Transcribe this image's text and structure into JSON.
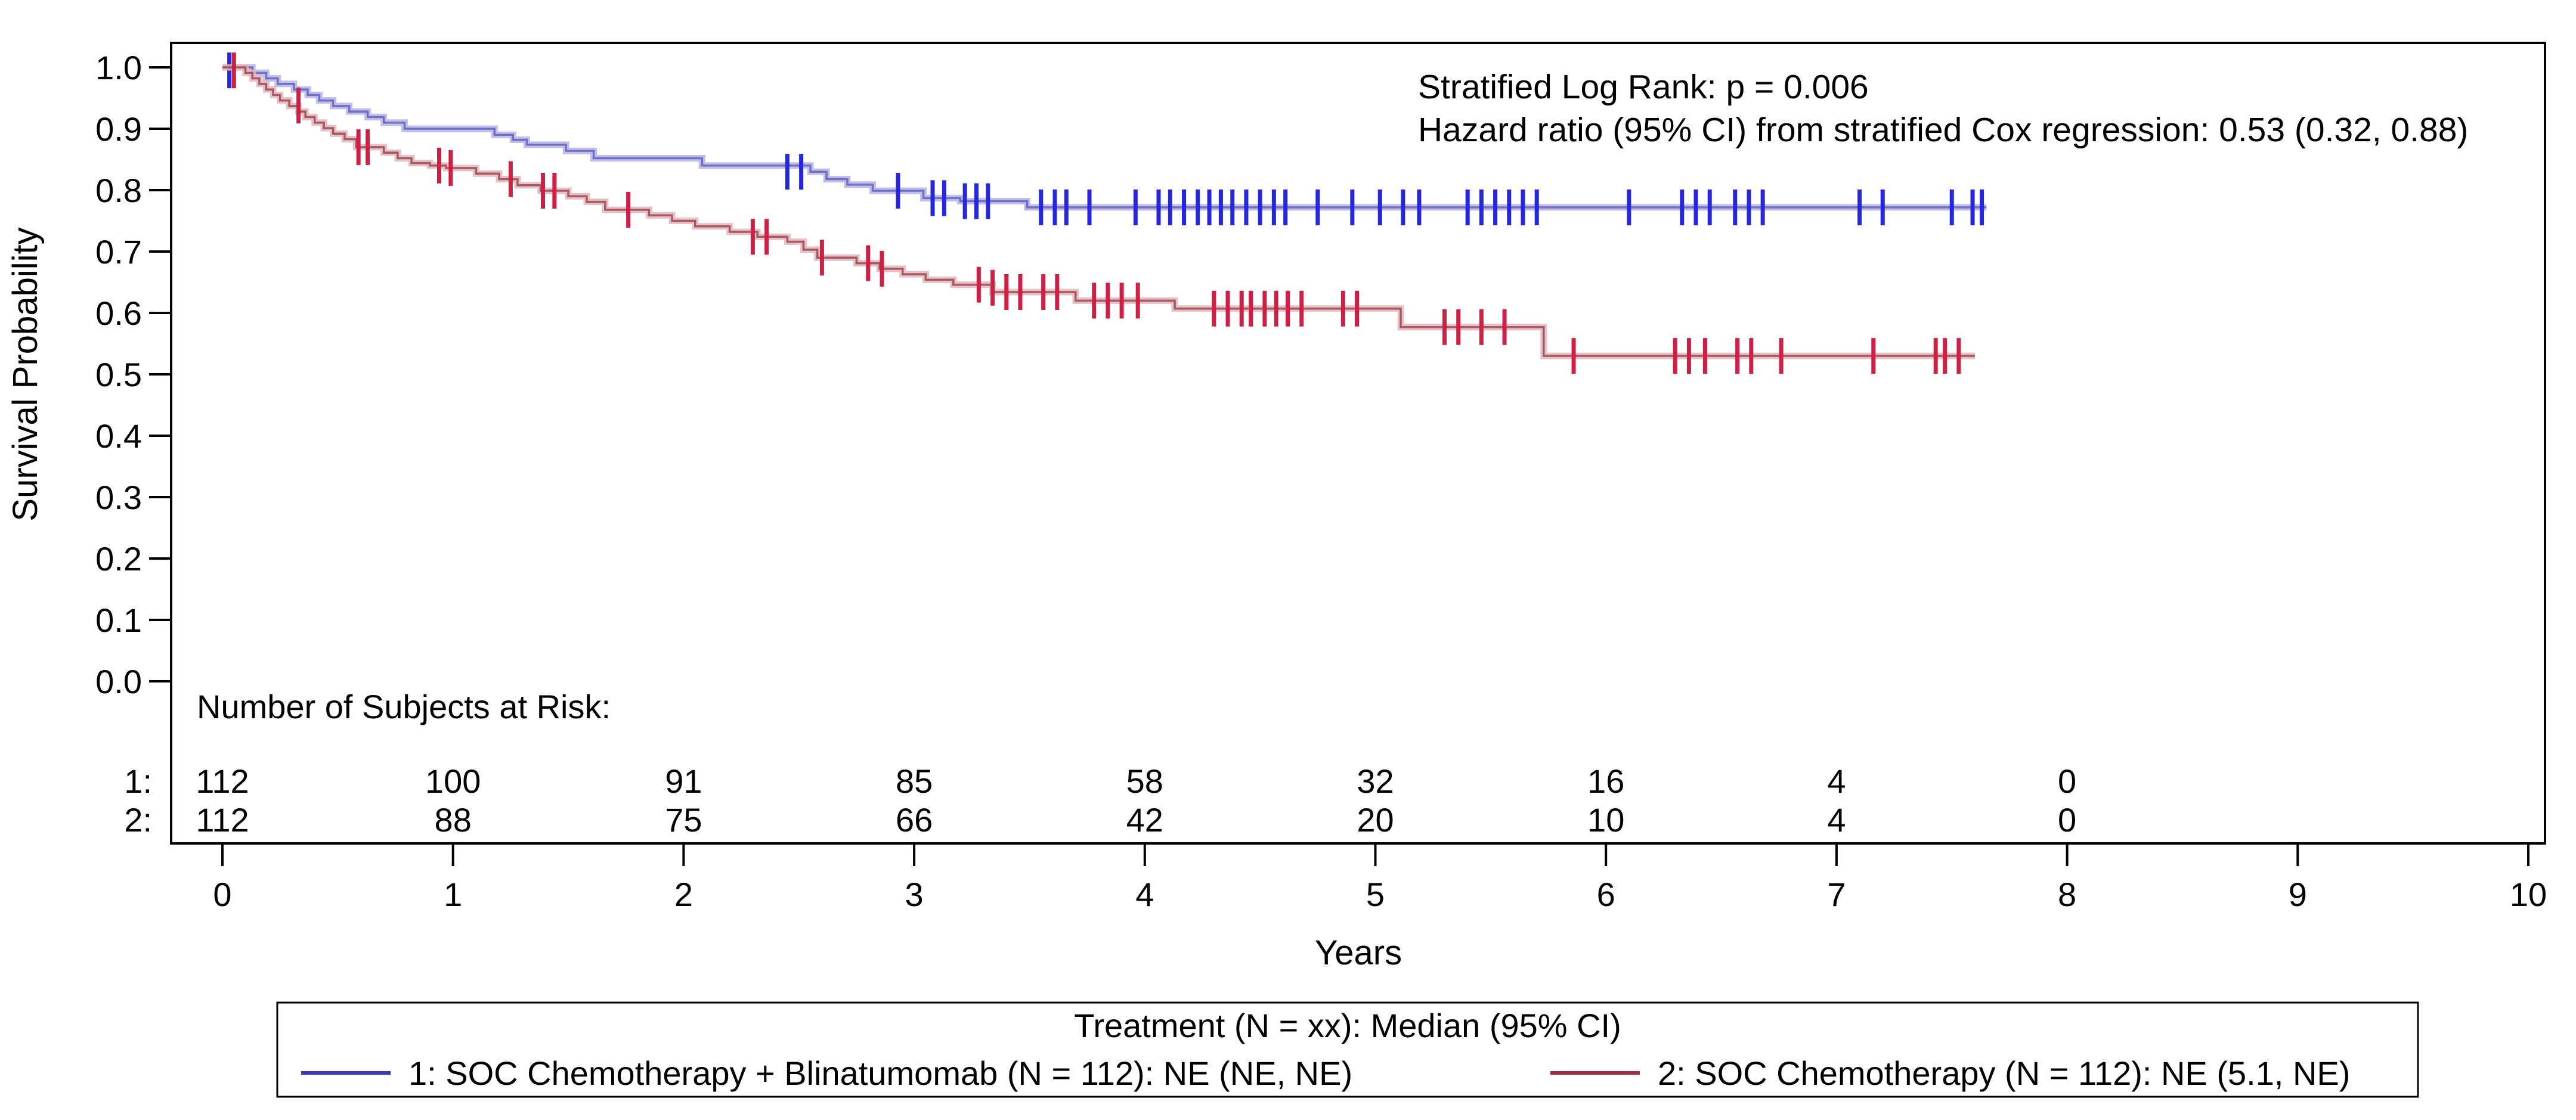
{
  "annotations": {
    "line1": "Stratified Log Rank: p = 0.006",
    "line2": "Hazard ratio (95% CI) from stratified Cox regression: 0.53 (0.32, 0.88)"
  },
  "risk_table": {
    "header": "Number of Subjects at Risk:",
    "rows": [
      {
        "label": "1:",
        "color": "#2a2acc",
        "values": [
          112,
          100,
          91,
          85,
          58,
          32,
          16,
          4,
          0
        ]
      },
      {
        "label": "2:",
        "color": "#c81f3a",
        "values": [
          112,
          88,
          75,
          66,
          42,
          20,
          10,
          4,
          0
        ]
      }
    ],
    "years": [
      0,
      1,
      2,
      3,
      4,
      5,
      6,
      7,
      8
    ]
  },
  "legend": {
    "title": "Treatment (N = xx): Median (95% CI)",
    "entries": [
      {
        "label": "1: SOC Chemotherapy + Blinatumomab (N = 112): NE (NE, NE)",
        "color": "#3a3ab8"
      },
      {
        "label": "2: SOC Chemotherapy (N = 112): NE (5.1, NE)",
        "color": "#9c3040"
      }
    ]
  },
  "chart_data": {
    "type": "line",
    "subtype": "kaplan-meier-step",
    "xlabel": "Years",
    "ylabel": "Survival Probability",
    "xlim": [
      0,
      10
    ],
    "ylim": [
      0.0,
      1.0
    ],
    "xticks": [
      0,
      1,
      2,
      3,
      4,
      5,
      6,
      7,
      8,
      9,
      10
    ],
    "yticks": [
      1.0,
      0.9,
      0.8,
      0.7,
      0.6,
      0.5,
      0.4,
      0.3,
      0.2,
      0.1,
      0.0
    ],
    "grid": false,
    "legend_position": "bottom",
    "stats": {
      "stratified_log_rank_p": "0.006",
      "hazard_ratio": "0.53",
      "hazard_ratio_ci": "(0.32, 0.88)"
    },
    "series": [
      {
        "name": "1: SOC Chemotherapy + Blinatumomab (N = 112): NE (NE, NE)",
        "row_label": "1:",
        "halo_color": "#b4b4e6",
        "core_color": "#6f6fc5",
        "censor_color": "#2626dd",
        "risk_color": "#2a2acc",
        "end_year": 7.65,
        "steps": [
          [
            0.0,
            1.0
          ],
          [
            0.13,
            0.991
          ],
          [
            0.19,
            0.982
          ],
          [
            0.24,
            0.973
          ],
          [
            0.31,
            0.964
          ],
          [
            0.37,
            0.955
          ],
          [
            0.42,
            0.946
          ],
          [
            0.48,
            0.937
          ],
          [
            0.55,
            0.928
          ],
          [
            0.63,
            0.919
          ],
          [
            0.7,
            0.91
          ],
          [
            0.79,
            0.9
          ],
          [
            1.18,
            0.89
          ],
          [
            1.26,
            0.882
          ],
          [
            1.32,
            0.874
          ],
          [
            1.49,
            0.864
          ],
          [
            1.61,
            0.852
          ],
          [
            2.08,
            0.84
          ],
          [
            2.55,
            0.83
          ],
          [
            2.62,
            0.818
          ],
          [
            2.71,
            0.809
          ],
          [
            2.82,
            0.799
          ],
          [
            3.04,
            0.787
          ],
          [
            3.2,
            0.782
          ],
          [
            3.49,
            0.772
          ]
        ],
        "censors": [
          [
            0.03,
            0.995
          ],
          [
            2.45,
            0.83
          ],
          [
            2.51,
            0.83
          ],
          [
            2.93,
            0.799
          ],
          [
            3.08,
            0.787
          ],
          [
            3.13,
            0.787
          ],
          [
            3.22,
            0.782
          ],
          [
            3.27,
            0.782
          ],
          [
            3.32,
            0.782
          ],
          [
            3.55,
            0.772
          ],
          [
            3.61,
            0.772
          ],
          [
            3.66,
            0.772
          ],
          [
            3.76,
            0.772
          ],
          [
            3.96,
            0.772
          ],
          [
            4.06,
            0.772
          ],
          [
            4.11,
            0.772
          ],
          [
            4.17,
            0.772
          ],
          [
            4.23,
            0.772
          ],
          [
            4.28,
            0.772
          ],
          [
            4.33,
            0.772
          ],
          [
            4.38,
            0.772
          ],
          [
            4.44,
            0.772
          ],
          [
            4.5,
            0.772
          ],
          [
            4.56,
            0.772
          ],
          [
            4.61,
            0.772
          ],
          [
            4.75,
            0.772
          ],
          [
            4.9,
            0.772
          ],
          [
            5.02,
            0.772
          ],
          [
            5.12,
            0.772
          ],
          [
            5.19,
            0.772
          ],
          [
            5.4,
            0.772
          ],
          [
            5.46,
            0.772
          ],
          [
            5.52,
            0.772
          ],
          [
            5.58,
            0.772
          ],
          [
            5.64,
            0.772
          ],
          [
            5.7,
            0.772
          ],
          [
            6.1,
            0.772
          ],
          [
            6.33,
            0.772
          ],
          [
            6.39,
            0.772
          ],
          [
            6.45,
            0.772
          ],
          [
            6.56,
            0.772
          ],
          [
            6.62,
            0.772
          ],
          [
            6.68,
            0.772
          ],
          [
            7.1,
            0.772
          ],
          [
            7.2,
            0.772
          ],
          [
            7.5,
            0.772
          ],
          [
            7.59,
            0.772
          ],
          [
            7.63,
            0.772
          ]
        ]
      },
      {
        "name": "2: SOC Chemotherapy (N = 112): NE (5.1, NE)",
        "row_label": "2:",
        "halo_color": "#e2b6bb",
        "core_color": "#a85862",
        "censor_color": "#cf1f45",
        "risk_color": "#c81f3a",
        "end_year": 7.6,
        "steps": [
          [
            0.0,
            1.0
          ],
          [
            0.1,
            0.991
          ],
          [
            0.13,
            0.982
          ],
          [
            0.16,
            0.973
          ],
          [
            0.19,
            0.964
          ],
          [
            0.22,
            0.955
          ],
          [
            0.25,
            0.946
          ],
          [
            0.29,
            0.937
          ],
          [
            0.33,
            0.928
          ],
          [
            0.36,
            0.919
          ],
          [
            0.4,
            0.91
          ],
          [
            0.44,
            0.901
          ],
          [
            0.48,
            0.892
          ],
          [
            0.53,
            0.883
          ],
          [
            0.58,
            0.87
          ],
          [
            0.7,
            0.861
          ],
          [
            0.76,
            0.852
          ],
          [
            0.82,
            0.844
          ],
          [
            0.9,
            0.84
          ],
          [
            0.97,
            0.836
          ],
          [
            1.1,
            0.827
          ],
          [
            1.2,
            0.818
          ],
          [
            1.28,
            0.808
          ],
          [
            1.38,
            0.799
          ],
          [
            1.5,
            0.79
          ],
          [
            1.58,
            0.781
          ],
          [
            1.66,
            0.768
          ],
          [
            1.85,
            0.759
          ],
          [
            1.95,
            0.75
          ],
          [
            2.05,
            0.741
          ],
          [
            2.2,
            0.732
          ],
          [
            2.32,
            0.724
          ],
          [
            2.45,
            0.716
          ],
          [
            2.52,
            0.703
          ],
          [
            2.58,
            0.69
          ],
          [
            2.75,
            0.681
          ],
          [
            2.85,
            0.672
          ],
          [
            2.95,
            0.663
          ],
          [
            3.05,
            0.654
          ],
          [
            3.17,
            0.646
          ],
          [
            3.34,
            0.634
          ],
          [
            3.7,
            0.62
          ],
          [
            4.13,
            0.607
          ],
          [
            5.11,
            0.577
          ],
          [
            5.73,
            0.53
          ]
        ],
        "censors": [
          [
            0.05,
            0.995
          ],
          [
            0.33,
            0.938
          ],
          [
            0.59,
            0.87
          ],
          [
            0.63,
            0.87
          ],
          [
            0.94,
            0.84
          ],
          [
            0.99,
            0.836
          ],
          [
            1.25,
            0.818
          ],
          [
            1.39,
            0.799
          ],
          [
            1.44,
            0.799
          ],
          [
            1.76,
            0.768
          ],
          [
            2.3,
            0.724
          ],
          [
            2.36,
            0.724
          ],
          [
            2.6,
            0.69
          ],
          [
            2.8,
            0.681
          ],
          [
            2.86,
            0.672
          ],
          [
            3.28,
            0.646
          ],
          [
            3.34,
            0.641
          ],
          [
            3.4,
            0.634
          ],
          [
            3.46,
            0.634
          ],
          [
            3.56,
            0.634
          ],
          [
            3.62,
            0.634
          ],
          [
            3.78,
            0.62
          ],
          [
            3.84,
            0.62
          ],
          [
            3.9,
            0.62
          ],
          [
            3.97,
            0.62
          ],
          [
            4.3,
            0.607
          ],
          [
            4.36,
            0.607
          ],
          [
            4.42,
            0.607
          ],
          [
            4.46,
            0.607
          ],
          [
            4.52,
            0.607
          ],
          [
            4.57,
            0.607
          ],
          [
            4.62,
            0.607
          ],
          [
            4.68,
            0.607
          ],
          [
            4.86,
            0.607
          ],
          [
            4.92,
            0.607
          ],
          [
            5.3,
            0.577
          ],
          [
            5.36,
            0.577
          ],
          [
            5.46,
            0.577
          ],
          [
            5.56,
            0.577
          ],
          [
            5.86,
            0.53
          ],
          [
            6.3,
            0.53
          ],
          [
            6.36,
            0.53
          ],
          [
            6.43,
            0.53
          ],
          [
            6.57,
            0.53
          ],
          [
            6.63,
            0.53
          ],
          [
            6.76,
            0.53
          ],
          [
            7.16,
            0.53
          ],
          [
            7.43,
            0.53
          ],
          [
            7.47,
            0.53
          ],
          [
            7.53,
            0.53
          ]
        ]
      }
    ]
  }
}
